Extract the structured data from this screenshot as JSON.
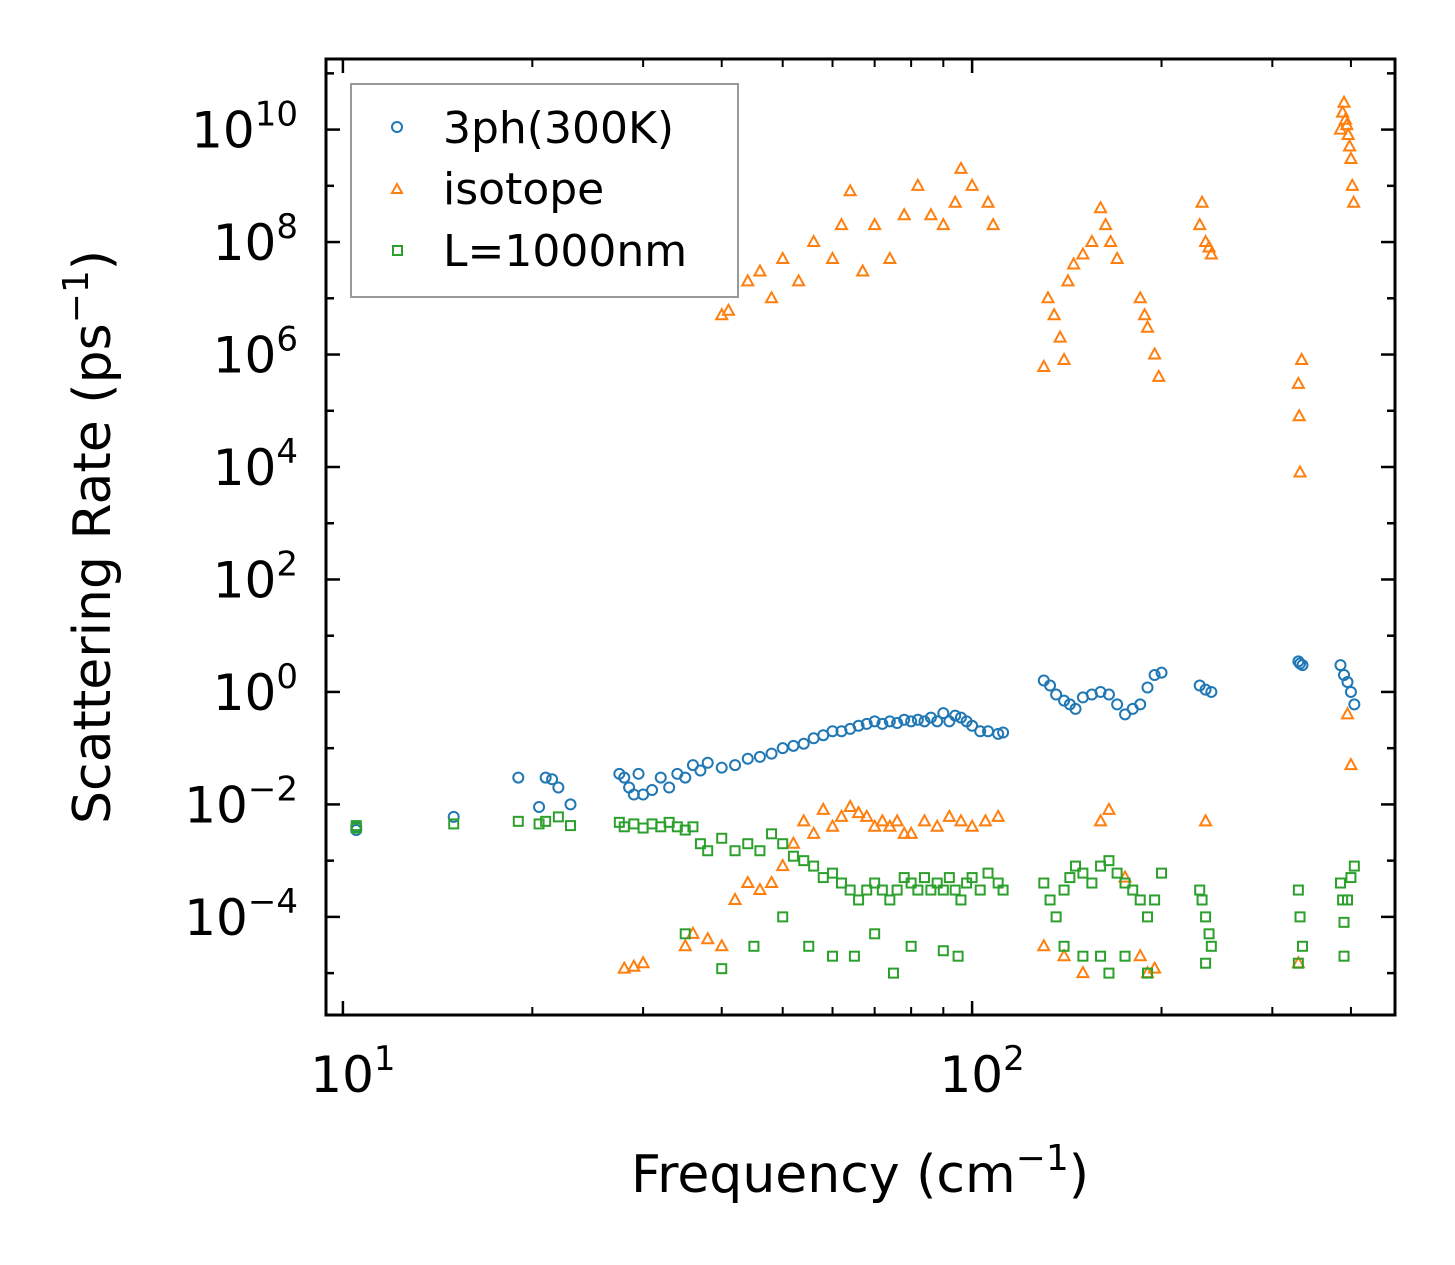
{
  "chart_data": {
    "type": "scatter",
    "title": "",
    "xlabel": "Frequency (cm",
    "xlabel_sup": "−1",
    "xlabel_end": ")",
    "ylabel": "Scattering Rate (ps",
    "ylabel_sup": "−1",
    "ylabel_end": ")",
    "xscale": "log",
    "yscale": "log",
    "xlim": [
      9.4,
      470
    ],
    "ylim": [
      1.8e-06,
      180000000000.0
    ],
    "x_ticks": [
      {
        "base": "10",
        "exp": "1",
        "value": 10
      },
      {
        "base": "10",
        "exp": "2",
        "value": 100
      }
    ],
    "y_ticks": [
      {
        "base": "10",
        "exp": "−4",
        "value": 0.0001
      },
      {
        "base": "10",
        "exp": "−2",
        "value": 0.01
      },
      {
        "base": "10",
        "exp": "0",
        "value": 1
      },
      {
        "base": "10",
        "exp": "2",
        "value": 100
      },
      {
        "base": "10",
        "exp": "4",
        "value": 10000
      },
      {
        "base": "10",
        "exp": "6",
        "value": 1000000
      },
      {
        "base": "10",
        "exp": "8",
        "value": 100000000
      },
      {
        "base": "10",
        "exp": "10",
        "value": 10000000000
      }
    ],
    "legend_position": "top-left",
    "series": [
      {
        "name": "3ph(300K)",
        "marker": "circle",
        "color": "#1f77b4",
        "x": [
          10.5,
          10.5,
          15,
          19,
          20.5,
          21,
          21.5,
          22,
          23,
          27.5,
          28,
          28.5,
          29,
          29.5,
          30,
          31,
          32,
          33,
          34,
          35,
          36,
          37,
          38,
          40,
          42,
          44,
          46,
          48,
          50,
          52,
          54,
          56,
          58,
          60,
          62,
          64,
          66,
          68,
          70,
          72,
          74,
          76,
          78,
          80,
          82,
          84,
          86,
          88,
          90,
          92,
          94,
          96,
          98,
          100,
          103,
          106,
          110,
          112,
          130,
          133,
          136,
          140,
          143,
          146,
          150,
          155,
          160,
          165,
          170,
          175,
          180,
          185,
          190,
          195,
          200,
          230,
          235,
          240,
          330,
          332,
          335,
          385,
          390,
          395,
          400,
          405
        ],
        "y": [
          0.0035,
          0.004,
          0.006,
          0.03,
          0.009,
          0.03,
          0.028,
          0.02,
          0.01,
          0.035,
          0.03,
          0.02,
          0.015,
          0.035,
          0.015,
          0.018,
          0.03,
          0.02,
          0.035,
          0.03,
          0.05,
          0.04,
          0.055,
          0.045,
          0.05,
          0.065,
          0.07,
          0.08,
          0.1,
          0.11,
          0.12,
          0.15,
          0.17,
          0.2,
          0.2,
          0.22,
          0.25,
          0.27,
          0.3,
          0.27,
          0.3,
          0.28,
          0.32,
          0.3,
          0.32,
          0.3,
          0.35,
          0.3,
          0.42,
          0.3,
          0.38,
          0.35,
          0.3,
          0.25,
          0.2,
          0.2,
          0.18,
          0.19,
          1.6,
          1.3,
          0.9,
          0.7,
          0.6,
          0.5,
          0.8,
          0.9,
          1.0,
          0.9,
          0.6,
          0.4,
          0.5,
          0.6,
          1.2,
          2.0,
          2.2,
          1.3,
          1.1,
          1.0,
          3.5,
          3.2,
          3.0,
          3.0,
          2.0,
          1.5,
          1.0,
          0.6
        ]
      },
      {
        "name": "isotope",
        "marker": "triangle",
        "color": "#ff7f0e",
        "x": [
          28,
          29,
          30,
          35,
          36,
          38,
          40,
          42,
          44,
          46,
          48,
          50,
          52,
          54,
          56,
          58,
          60,
          62,
          64,
          66,
          68,
          70,
          72,
          74,
          76,
          78,
          80,
          84,
          88,
          92,
          96,
          100,
          105,
          110,
          40,
          41,
          44,
          46,
          48,
          50,
          53,
          56,
          60,
          62,
          64,
          67,
          70,
          74,
          78,
          82,
          86,
          90,
          94,
          96,
          100,
          106,
          108,
          130,
          132,
          135,
          138,
          140,
          142,
          145,
          150,
          155,
          160,
          163,
          166,
          170,
          185,
          188,
          190,
          195,
          198,
          230,
          232,
          235,
          238,
          240,
          330,
          331,
          332,
          334,
          385,
          388,
          390,
          392,
          394,
          396,
          398,
          400,
          402,
          404,
          130,
          140,
          150,
          160,
          165,
          175,
          185,
          190,
          195,
          235,
          330,
          395,
          400
        ],
        "y": [
          1.2e-05,
          1.3e-05,
          1.5e-05,
          3e-05,
          5e-05,
          4e-05,
          3e-05,
          0.0002,
          0.0004,
          0.0003,
          0.0004,
          0.0008,
          0.002,
          0.005,
          0.003,
          0.008,
          0.004,
          0.006,
          0.009,
          0.007,
          0.006,
          0.004,
          0.005,
          0.004,
          0.005,
          0.003,
          0.003,
          0.005,
          0.004,
          0.006,
          0.005,
          0.004,
          0.005,
          0.006,
          5000000,
          6000000,
          20000000,
          30000000,
          10000000,
          50000000,
          20000000,
          100000000,
          50000000,
          200000000,
          800000000,
          30000000,
          200000000,
          50000000,
          300000000,
          1000000000,
          300000000,
          200000000,
          500000000,
          2000000000,
          1000000000,
          500000000,
          200000000,
          600000,
          10000000,
          5000000,
          2000000,
          800000,
          20000000,
          40000000,
          60000000,
          100000000,
          400000000,
          200000000,
          100000000,
          50000000,
          10000000,
          5000000,
          3000000,
          1000000,
          400000,
          200000000,
          500000000,
          100000000,
          80000000,
          60000000,
          300000,
          80000,
          8000,
          800000,
          10000000000,
          20000000000,
          30000000000,
          15000000000,
          12000000000,
          8000000000,
          5000000000,
          3000000000,
          1000000000,
          500000000,
          3e-05,
          2e-05,
          1e-05,
          0.005,
          0.008,
          0.0005,
          2e-05,
          1e-05,
          1.2e-05,
          0.005,
          1.5e-05,
          0.4,
          0.05
        ]
      },
      {
        "name": "L=1000nm",
        "marker": "square",
        "color": "#2ca02c",
        "x": [
          10.5,
          10.5,
          15,
          19,
          20.5,
          21,
          22,
          23,
          27.5,
          28,
          29,
          30,
          31,
          32,
          33,
          34,
          35,
          36,
          37,
          38,
          40,
          42,
          44,
          46,
          48,
          50,
          52,
          54,
          56,
          58,
          60,
          62,
          64,
          66,
          68,
          70,
          72,
          74,
          76,
          78,
          80,
          82,
          84,
          86,
          88,
          90,
          92,
          94,
          96,
          98,
          100,
          103,
          106,
          110,
          112,
          130,
          133,
          136,
          140,
          143,
          146,
          150,
          155,
          160,
          165,
          170,
          175,
          180,
          185,
          190,
          195,
          200,
          230,
          232,
          235,
          238,
          240,
          330,
          332,
          335,
          385,
          388,
          390,
          395,
          400,
          405,
          35,
          40,
          45,
          50,
          55,
          60,
          65,
          70,
          75,
          80,
          90,
          95,
          140,
          150,
          160,
          165,
          175,
          190,
          235,
          330,
          390
        ],
        "y": [
          0.0042,
          0.0038,
          0.0045,
          0.005,
          0.0045,
          0.005,
          0.006,
          0.0042,
          0.0048,
          0.004,
          0.0045,
          0.0038,
          0.0045,
          0.004,
          0.0048,
          0.004,
          0.0035,
          0.004,
          0.002,
          0.0015,
          0.0025,
          0.0015,
          0.002,
          0.0015,
          0.003,
          0.002,
          0.0012,
          0.001,
          0.0008,
          0.0005,
          0.0006,
          0.0004,
          0.0003,
          0.0002,
          0.0003,
          0.0004,
          0.0003,
          0.0002,
          0.0003,
          0.0005,
          0.0004,
          0.0003,
          0.0005,
          0.0003,
          0.0004,
          0.0003,
          0.0005,
          0.0003,
          0.0002,
          0.0004,
          0.0005,
          0.0003,
          0.0006,
          0.0004,
          0.0003,
          0.0004,
          0.0002,
          0.0001,
          0.0003,
          0.0005,
          0.0008,
          0.0006,
          0.0004,
          0.0008,
          0.001,
          0.0006,
          0.0004,
          0.0003,
          0.0002,
          0.0001,
          0.0002,
          0.0006,
          0.0003,
          0.0002,
          0.0001,
          5e-05,
          3e-05,
          0.0003,
          0.0001,
          3e-05,
          0.0004,
          0.0002,
          8e-05,
          0.0002,
          0.0005,
          0.0008,
          5e-05,
          1.2e-05,
          3e-05,
          0.0001,
          3e-05,
          2e-05,
          2e-05,
          5e-05,
          1e-05,
          3e-05,
          2.5e-05,
          2e-05,
          3e-05,
          2e-05,
          2e-05,
          1e-05,
          2e-05,
          1e-05,
          1.5e-05,
          1.5e-05,
          2e-05
        ]
      }
    ]
  }
}
